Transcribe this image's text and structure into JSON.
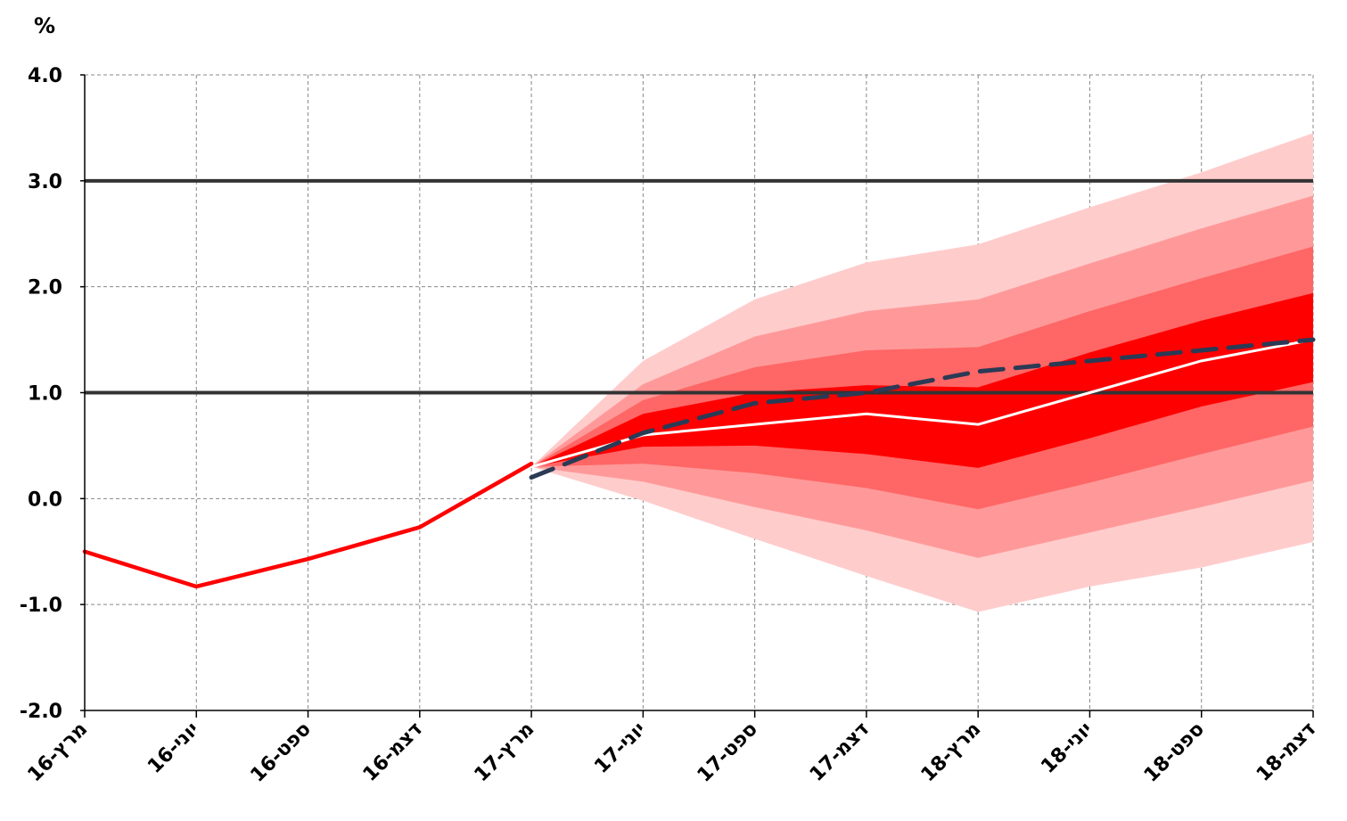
{
  "chart_data": {
    "type": "line",
    "title": "",
    "ylabel": "%",
    "xlabel": "",
    "ylim": [
      -2.0,
      4.0
    ],
    "yticks": [
      "4.0",
      "3.0",
      "2.0",
      "1.0",
      "0.0",
      "-1.0",
      "-2.0"
    ],
    "ytick_values": [
      4.0,
      3.0,
      2.0,
      1.0,
      0.0,
      -1.0,
      -2.0
    ],
    "categories": [
      "מרץ-16",
      "יוני-16",
      "ספט-16",
      "דצמ-16",
      "מרץ-17",
      "יוני-17",
      "ספט-17",
      "דצמ-17",
      "מרץ-18",
      "יוני-18",
      "ספט-18",
      "דצמ-18"
    ],
    "grid": "dashed",
    "target_range": [
      1.0,
      3.0
    ],
    "series": [
      {
        "values": [
          -0.5,
          -0.83,
          -0.57,
          -0.27,
          0.33,
          null,
          null,
          null,
          null,
          null,
          null,
          null
        ]
      },
      {
        "values": [
          null,
          null,
          null,
          null,
          0.3,
          0.6,
          0.7,
          0.8,
          0.7,
          1.0,
          1.3,
          1.5
        ]
      },
      {
        "values": [
          null,
          null,
          null,
          null,
          0.2,
          0.62,
          0.9,
          1.0,
          1.2,
          1.3,
          1.4,
          1.5
        ]
      }
    ],
    "fan_bands": [
      {
        "lower": [
          0.3,
          -0.02,
          -0.38,
          -0.73,
          -1.07,
          -0.83,
          -0.65,
          -0.41
        ],
        "upper": [
          0.3,
          1.3,
          1.88,
          2.23,
          2.4,
          2.75,
          3.08,
          3.45
        ]
      },
      {
        "lower": [
          0.3,
          0.16,
          -0.08,
          -0.3,
          -0.56,
          -0.32,
          -0.08,
          0.17
        ],
        "upper": [
          0.3,
          1.08,
          1.53,
          1.77,
          1.88,
          2.22,
          2.55,
          2.86
        ]
      },
      {
        "lower": [
          0.3,
          0.33,
          0.24,
          0.1,
          -0.1,
          0.15,
          0.42,
          0.68
        ],
        "upper": [
          0.3,
          0.93,
          1.24,
          1.4,
          1.43,
          1.77,
          2.08,
          2.38
        ]
      },
      {
        "lower": [
          0.3,
          0.49,
          0.5,
          0.42,
          0.29,
          0.57,
          0.87,
          1.1
        ],
        "upper": [
          0.3,
          0.8,
          1.0,
          1.07,
          1.05,
          1.38,
          1.68,
          1.94
        ]
      }
    ],
    "colors": {
      "actual": "#ff0000",
      "central": "#ffffff",
      "dashed": "#2b3a55",
      "band_outer": "#ffcccc",
      "band_2": "#ff9999",
      "band_3": "#ff6666",
      "band_inner": "#ff0000",
      "target_line": "#333333",
      "grid": "#888888"
    }
  }
}
